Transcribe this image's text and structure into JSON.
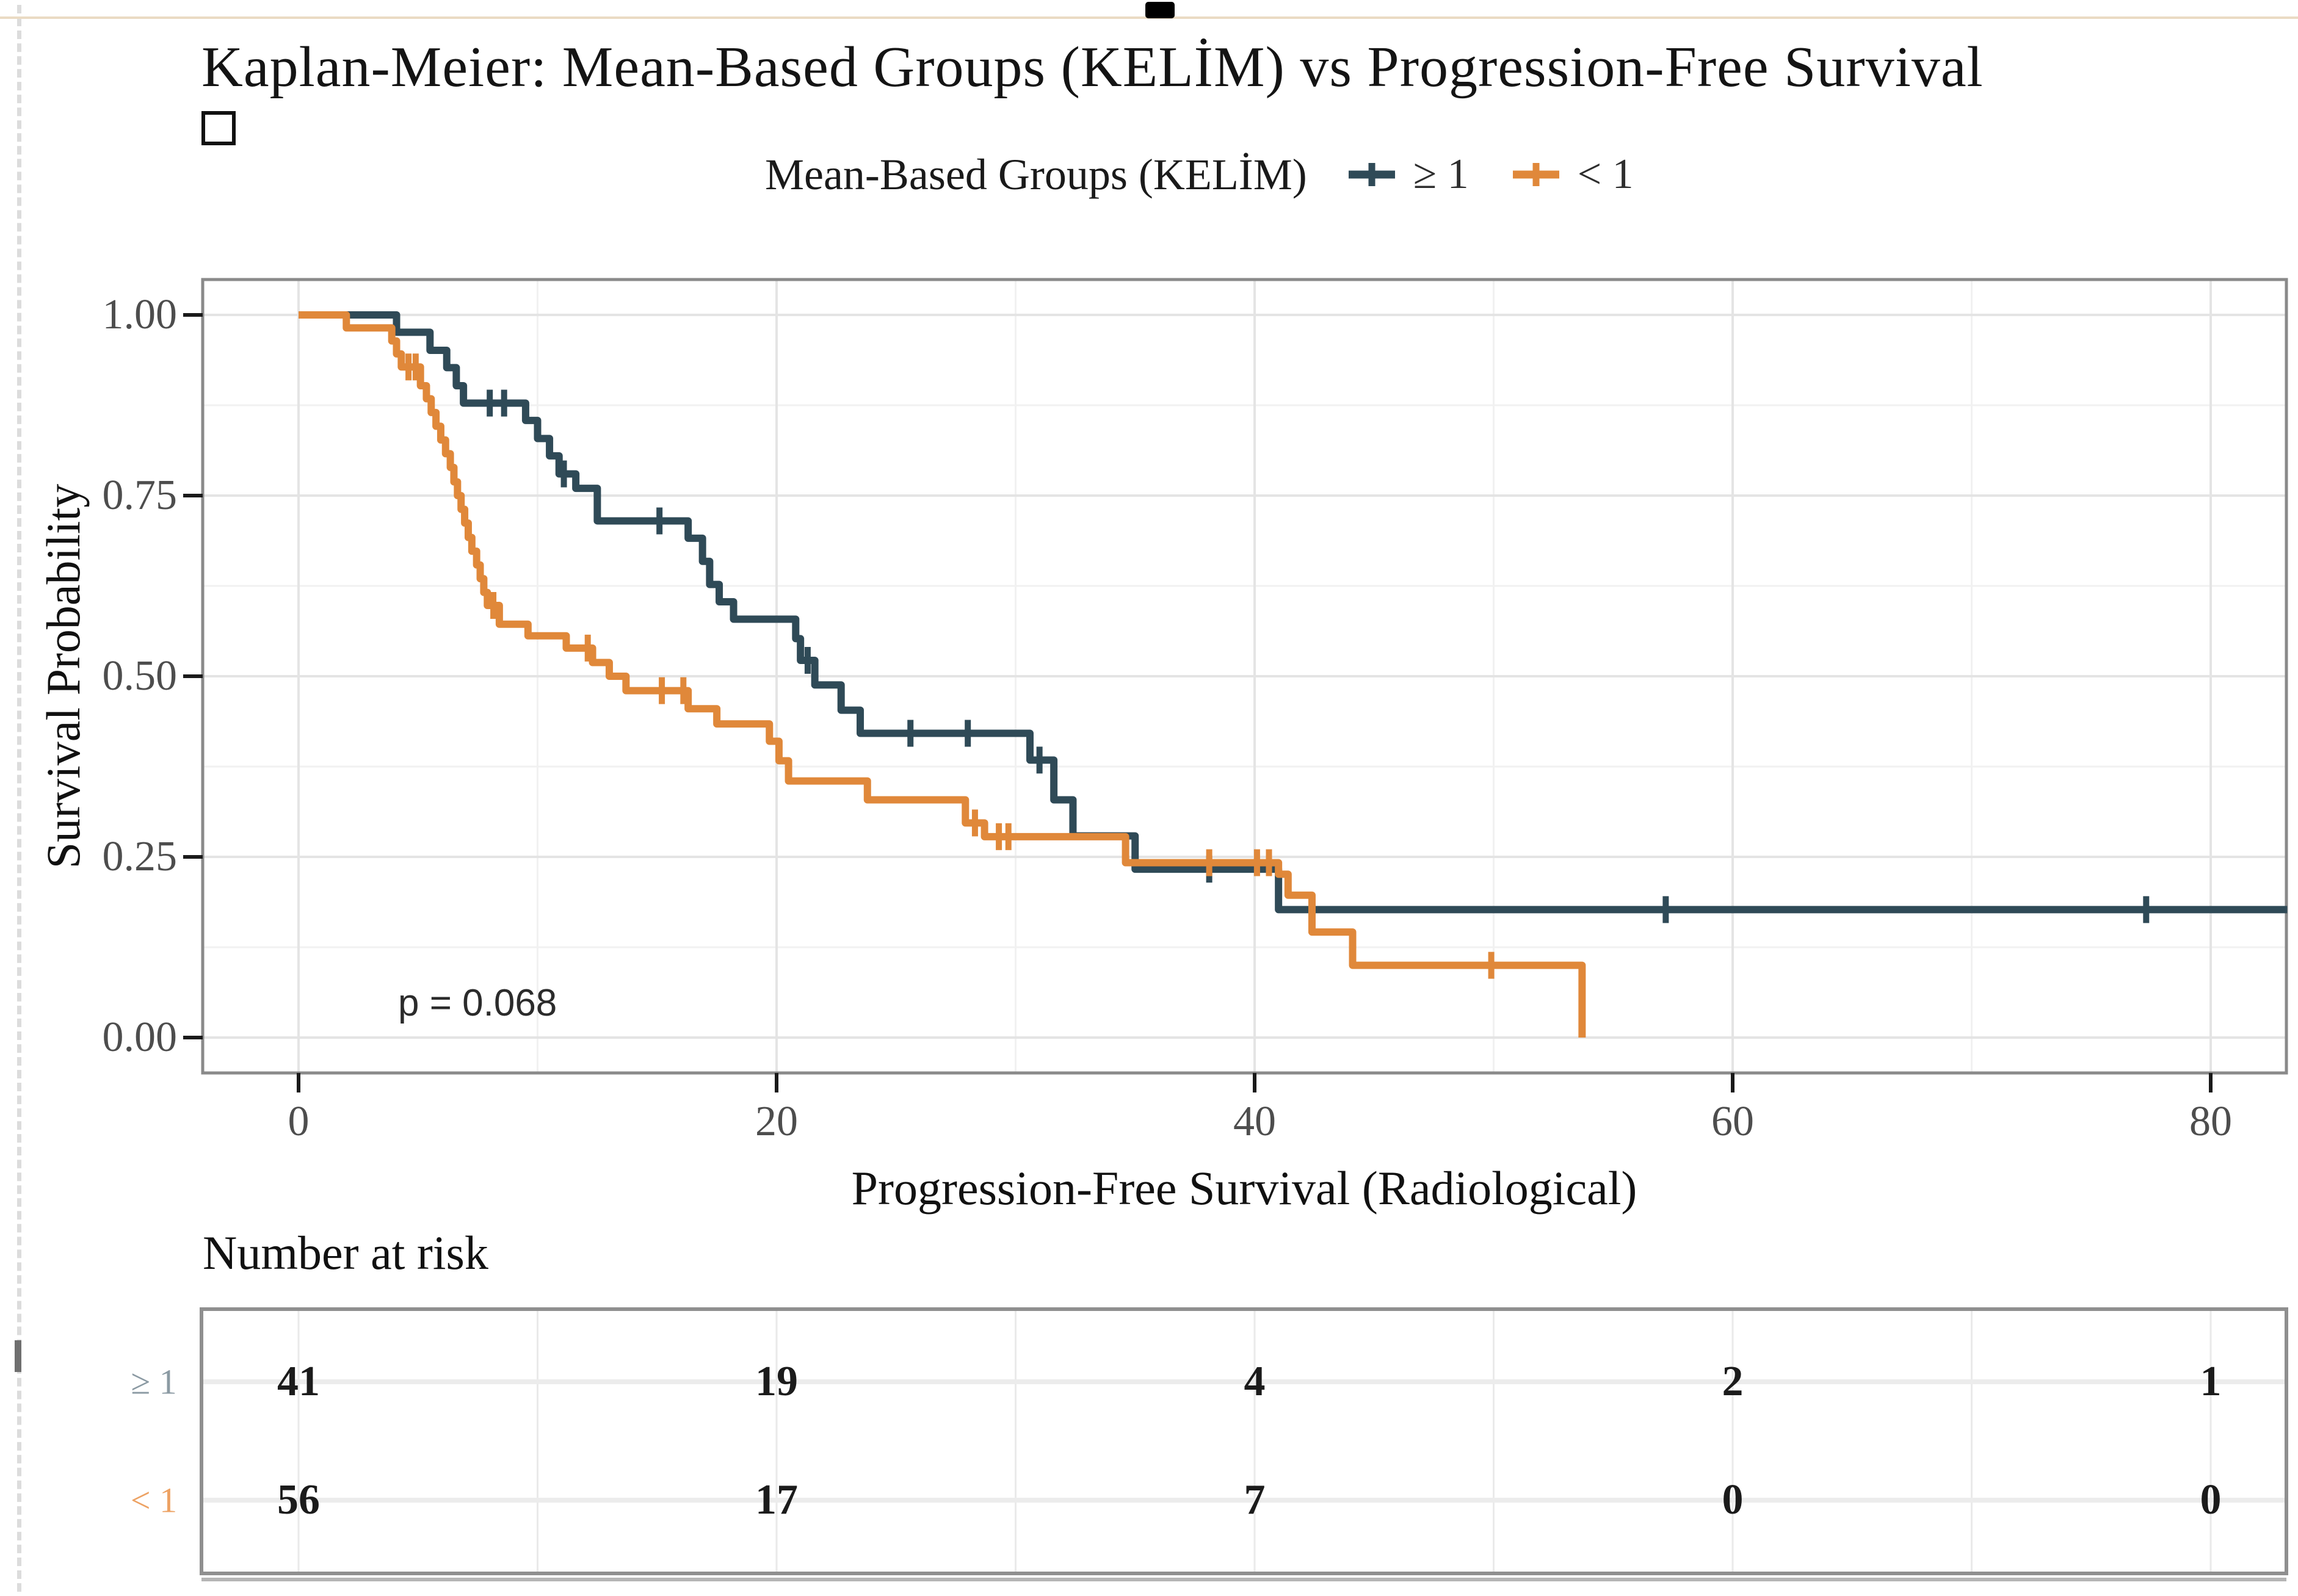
{
  "page": {
    "title": "Kaplan-Meier: Mean-Based Groups (KELİM) vs Progression-Free Survival",
    "number_at_risk_label": "Number at risk",
    "p_value": "p = 0.068"
  },
  "legend": {
    "title": "Mean-Based Groups (KELİM)",
    "items": [
      {
        "label": "≥ 1",
        "color": "#2f4a57"
      },
      {
        "label": "< 1",
        "color": "#e0883a"
      }
    ]
  },
  "axes": {
    "x_label": "Progression-Free Survival (Radiological)",
    "y_label": "Survival Probability",
    "x_tick_labels": [
      "0",
      "20",
      "40",
      "60",
      "80"
    ],
    "y_tick_labels": [
      "1.00",
      "0.75",
      "0.50",
      "0.25",
      "0.00"
    ]
  },
  "risk_table": {
    "rows": [
      {
        "label": "≥ 1",
        "color": "#8b9aa3",
        "values": [
          "41",
          "19",
          "4",
          "2",
          "1"
        ]
      },
      {
        "label": "< 1",
        "color": "#eda263",
        "values": [
          "56",
          "17",
          "7",
          "0",
          "0"
        ]
      }
    ]
  },
  "chart_data": {
    "type": "line",
    "subtype": "kaplan-meier-step",
    "title": "Kaplan-Meier: Mean-Based Groups (KELİM) vs Progression-Free Survival",
    "xlabel": "Progression-Free Survival (Radiological)",
    "ylabel": "Survival Probability",
    "xlim": [
      0,
      83.2
    ],
    "ylim": [
      0,
      1
    ],
    "x_major_ticks": [
      0,
      20,
      40,
      60,
      80
    ],
    "x_minor_gridlines": [
      10,
      30,
      50,
      70
    ],
    "y_major_ticks": [
      1.0,
      0.75,
      0.5,
      0.25,
      0.0
    ],
    "y_minor_gridlines": [
      0.875,
      0.625,
      0.375,
      0.125
    ],
    "grid": true,
    "legend_position": "top",
    "p_value_annotation": {
      "text": "p = 0.068",
      "x": 4.2,
      "y": 0.05
    },
    "series": [
      {
        "name": "≥ 1",
        "color": "#2f4a57",
        "n_start": 41,
        "end_t": 83.2,
        "points": [
          [
            0,
            1.0
          ],
          [
            4.1,
            0.976
          ],
          [
            5.5,
            0.951
          ],
          [
            6.2,
            0.927
          ],
          [
            6.6,
            0.902
          ],
          [
            6.9,
            0.878
          ],
          [
            9.5,
            0.854
          ],
          [
            10.0,
            0.829
          ],
          [
            10.5,
            0.805
          ],
          [
            10.9,
            0.78
          ],
          [
            11.6,
            0.76
          ],
          [
            12.5,
            0.715
          ],
          [
            16.3,
            0.691
          ],
          [
            16.9,
            0.659
          ],
          [
            17.2,
            0.627
          ],
          [
            17.6,
            0.603
          ],
          [
            18.2,
            0.579
          ],
          [
            20.8,
            0.552
          ],
          [
            21.0,
            0.522
          ],
          [
            21.6,
            0.488
          ],
          [
            22.7,
            0.453
          ],
          [
            23.5,
            0.421
          ],
          [
            30.6,
            0.384
          ],
          [
            31.6,
            0.329
          ],
          [
            32.4,
            0.279
          ],
          [
            35.0,
            0.233
          ],
          [
            41.0,
            0.177
          ]
        ],
        "censors": [
          [
            8.0,
            0.878
          ],
          [
            8.6,
            0.878
          ],
          [
            11.1,
            0.78
          ],
          [
            15.1,
            0.715
          ],
          [
            21.3,
            0.522
          ],
          [
            25.6,
            0.421
          ],
          [
            28.0,
            0.421
          ],
          [
            31.0,
            0.384
          ],
          [
            38.1,
            0.233
          ],
          [
            57.2,
            0.177
          ],
          [
            77.3,
            0.177
          ]
        ]
      },
      {
        "name": "< 1",
        "color": "#e0883a",
        "n_start": 56,
        "end_t": 53.7,
        "points": [
          [
            0,
            1.0
          ],
          [
            2.0,
            0.982
          ],
          [
            3.9,
            0.964
          ],
          [
            4.1,
            0.946
          ],
          [
            4.3,
            0.928
          ],
          [
            5.1,
            0.902
          ],
          [
            5.35,
            0.884
          ],
          [
            5.55,
            0.865
          ],
          [
            5.75,
            0.846
          ],
          [
            5.95,
            0.827
          ],
          [
            6.15,
            0.808
          ],
          [
            6.35,
            0.789
          ],
          [
            6.5,
            0.769
          ],
          [
            6.65,
            0.75
          ],
          [
            6.8,
            0.731
          ],
          [
            6.95,
            0.712
          ],
          [
            7.1,
            0.692
          ],
          [
            7.25,
            0.673
          ],
          [
            7.45,
            0.654
          ],
          [
            7.6,
            0.635
          ],
          [
            7.75,
            0.616
          ],
          [
            7.9,
            0.598
          ],
          [
            8.4,
            0.572
          ],
          [
            9.6,
            0.556
          ],
          [
            11.2,
            0.539
          ],
          [
            12.3,
            0.519
          ],
          [
            13.0,
            0.5
          ],
          [
            13.7,
            0.48
          ],
          [
            16.3,
            0.455
          ],
          [
            17.5,
            0.434
          ],
          [
            19.7,
            0.41
          ],
          [
            20.1,
            0.383
          ],
          [
            20.5,
            0.355
          ],
          [
            23.8,
            0.329
          ],
          [
            27.9,
            0.297
          ],
          [
            28.7,
            0.278
          ],
          [
            34.6,
            0.242
          ],
          [
            41.0,
            0.226
          ],
          [
            41.4,
            0.197
          ],
          [
            42.4,
            0.146
          ],
          [
            44.1,
            0.1
          ],
          [
            53.7,
            0.0
          ]
        ],
        "censors": [
          [
            4.6,
            0.928
          ],
          [
            4.9,
            0.928
          ],
          [
            8.15,
            0.598
          ],
          [
            12.1,
            0.539
          ],
          [
            15.2,
            0.48
          ],
          [
            16.1,
            0.48
          ],
          [
            28.3,
            0.297
          ],
          [
            29.3,
            0.278
          ],
          [
            29.7,
            0.278
          ],
          [
            38.1,
            0.242
          ],
          [
            40.1,
            0.242
          ],
          [
            40.6,
            0.242
          ],
          [
            49.9,
            0.1
          ]
        ]
      }
    ],
    "number_at_risk": {
      "times": [
        0,
        20,
        40,
        60,
        80
      ],
      "rows": [
        {
          "name": "≥ 1",
          "counts": [
            41,
            19,
            4,
            2,
            1
          ]
        },
        {
          "name": "< 1",
          "counts": [
            56,
            17,
            7,
            0,
            0
          ]
        }
      ]
    }
  }
}
